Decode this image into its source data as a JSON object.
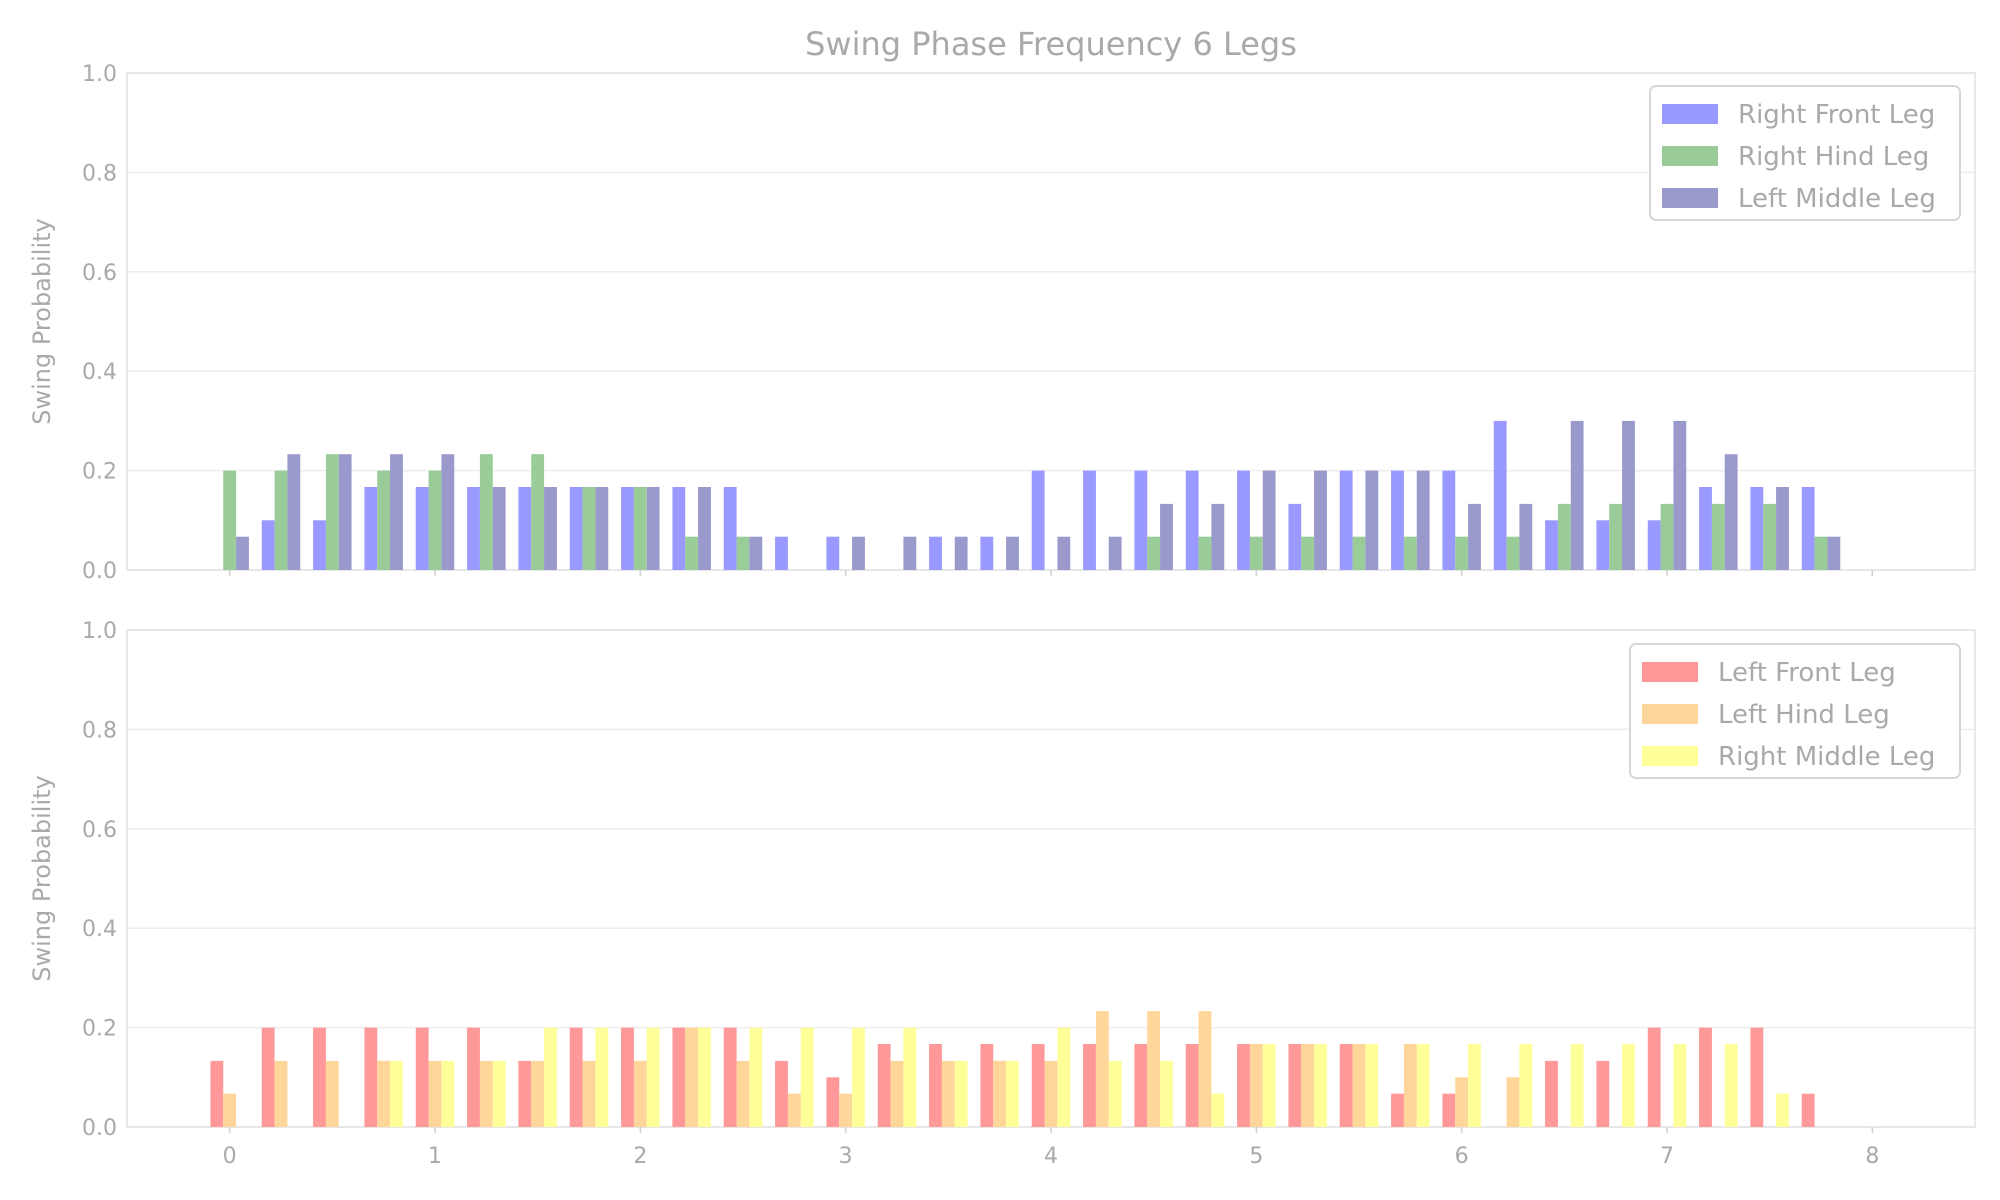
{
  "chart_data": [
    {
      "type": "bar",
      "title": "Swing Phase Frequency 6 Legs",
      "xlabel": "",
      "ylabel": "Swing Probability",
      "ylim": [
        0,
        1
      ],
      "xlim": [
        -0.5,
        8.5
      ],
      "xticks": [
        "0",
        "1",
        "2",
        "3",
        "4",
        "5",
        "6",
        "7",
        "8"
      ],
      "yticks": [
        "0.0",
        "0.2",
        "0.4",
        "0.6",
        "0.8",
        "1.0"
      ],
      "x": [
        0,
        0.25,
        0.5,
        0.75,
        1,
        1.25,
        1.5,
        1.75,
        2,
        2.25,
        2.5,
        2.75,
        3,
        3.25,
        3.5,
        3.75,
        4,
        4.25,
        4.5,
        4.75,
        5,
        5.25,
        5.5,
        5.75,
        6,
        6.25,
        6.5,
        6.75,
        7,
        7.25,
        7.5,
        7.75
      ],
      "bar_width": 0.0625,
      "legend_position": "upper right",
      "series": [
        {
          "name": "Right Front Leg",
          "color": "#9999ff",
          "offset": -0.0625,
          "values": [
            0,
            0.1,
            0.1,
            0.167,
            0.167,
            0.167,
            0.167,
            0.167,
            0.167,
            0.167,
            0.167,
            0.067,
            0.067,
            0,
            0.067,
            0.067,
            0.2,
            0.2,
            0.2,
            0.2,
            0.2,
            0.133,
            0.2,
            0.2,
            0.2,
            0.3,
            0.1,
            0.1,
            0.1,
            0.167,
            0.167,
            0.167
          ]
        },
        {
          "name": "Right Hind Leg",
          "color": "#99cc99",
          "offset": 0,
          "values": [
            0.2,
            0.2,
            0.233,
            0.2,
            0.2,
            0.233,
            0.233,
            0.167,
            0.167,
            0.067,
            0.067,
            0,
            0,
            0,
            0,
            0,
            0,
            0,
            0.067,
            0.067,
            0.067,
            0.067,
            0.067,
            0.067,
            0.067,
            0.067,
            0.133,
            0.133,
            0.133,
            0.133,
            0.133,
            0.067
          ]
        },
        {
          "name": "Left Middle Leg",
          "color": "#9999cc",
          "offset": 0.0625,
          "values": [
            0.067,
            0.233,
            0.233,
            0.233,
            0.233,
            0.167,
            0.167,
            0.167,
            0.167,
            0.167,
            0.067,
            0,
            0.067,
            0.067,
            0.067,
            0.067,
            0.067,
            0.067,
            0.133,
            0.133,
            0.2,
            0.2,
            0.2,
            0.2,
            0.133,
            0.133,
            0.3,
            0.3,
            0.3,
            0.233,
            0.167,
            0.067
          ]
        }
      ]
    },
    {
      "type": "bar",
      "title": "",
      "xlabel": "",
      "ylabel": "Swing Probability",
      "ylim": [
        0,
        1
      ],
      "xlim": [
        -0.5,
        8.5
      ],
      "xticks": [
        "0",
        "1",
        "2",
        "3",
        "4",
        "5",
        "6",
        "7",
        "8"
      ],
      "yticks": [
        "0.0",
        "0.2",
        "0.4",
        "0.6",
        "0.8",
        "1.0"
      ],
      "x": [
        0,
        0.25,
        0.5,
        0.75,
        1,
        1.25,
        1.5,
        1.75,
        2,
        2.25,
        2.5,
        2.75,
        3,
        3.25,
        3.5,
        3.75,
        4,
        4.25,
        4.5,
        4.75,
        5,
        5.25,
        5.5,
        5.75,
        6,
        6.25,
        6.5,
        6.75,
        7,
        7.25,
        7.5,
        7.75
      ],
      "bar_width": 0.0625,
      "legend_position": "upper right",
      "series": [
        {
          "name": "Left Front Leg",
          "color": "#ff9999",
          "offset": -0.0625,
          "values": [
            0.133,
            0.2,
            0.2,
            0.2,
            0.2,
            0.2,
            0.133,
            0.2,
            0.2,
            0.2,
            0.2,
            0.133,
            0.1,
            0.167,
            0.167,
            0.167,
            0.167,
            0.167,
            0.167,
            0.167,
            0.167,
            0.167,
            0.167,
            0.067,
            0.067,
            0,
            0.133,
            0.133,
            0.2,
            0.2,
            0.2,
            0.067
          ]
        },
        {
          "name": "Left Hind Leg",
          "color": "#ffd699",
          "offset": 0,
          "values": [
            0.067,
            0.133,
            0.133,
            0.133,
            0.133,
            0.133,
            0.133,
            0.133,
            0.133,
            0.2,
            0.133,
            0.067,
            0.067,
            0.133,
            0.133,
            0.133,
            0.133,
            0.233,
            0.233,
            0.233,
            0.167,
            0.167,
            0.167,
            0.167,
            0.1,
            0.1,
            0,
            0,
            0,
            0,
            0,
            0
          ]
        },
        {
          "name": "Right Middle Leg",
          "color": "#ffff99",
          "offset": 0.0625,
          "values": [
            0,
            0,
            0,
            0.133,
            0.133,
            0.133,
            0.2,
            0.2,
            0.2,
            0.2,
            0.2,
            0.2,
            0.2,
            0.2,
            0.133,
            0.133,
            0.2,
            0.133,
            0.133,
            0.067,
            0.167,
            0.167,
            0.167,
            0.167,
            0.167,
            0.167,
            0.167,
            0.167,
            0.167,
            0.167,
            0.067,
            0
          ]
        }
      ]
    }
  ]
}
